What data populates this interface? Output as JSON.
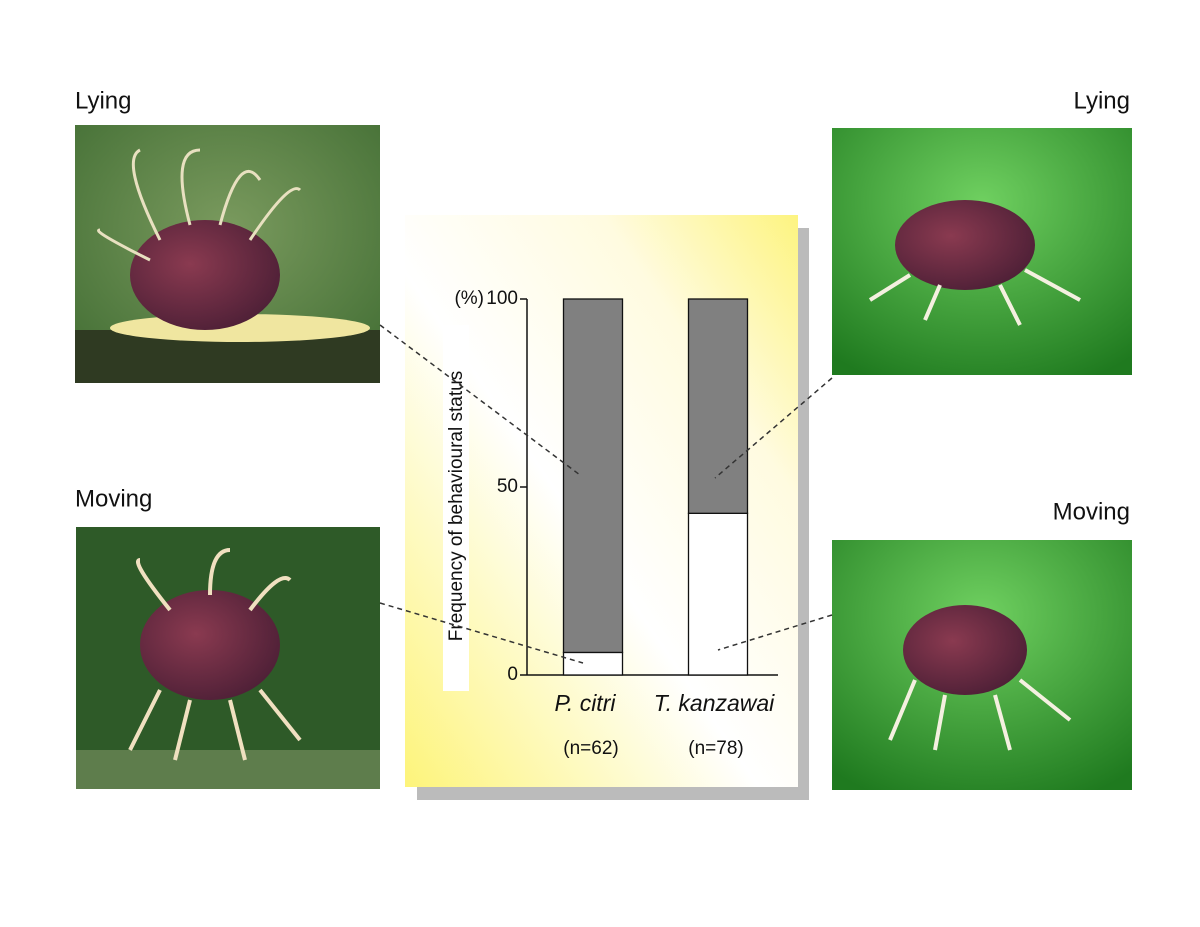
{
  "chart_data": {
    "type": "stacked_bar",
    "y_label": "Frequency of behavioural status",
    "y_unit": "(%)",
    "categories": [
      "P. citri",
      "T. kanzawai"
    ],
    "sample_sizes": [
      "(n=62)",
      "(n=78)"
    ],
    "series": [
      {
        "name": "Moving",
        "color": "#ffffff",
        "values": [
          6,
          43
        ]
      },
      {
        "name": "Lying",
        "color": "#808080",
        "values": [
          94,
          57
        ]
      }
    ],
    "ylim": [
      0,
      100
    ],
    "yticks": [
      0,
      50,
      100
    ]
  }
}
